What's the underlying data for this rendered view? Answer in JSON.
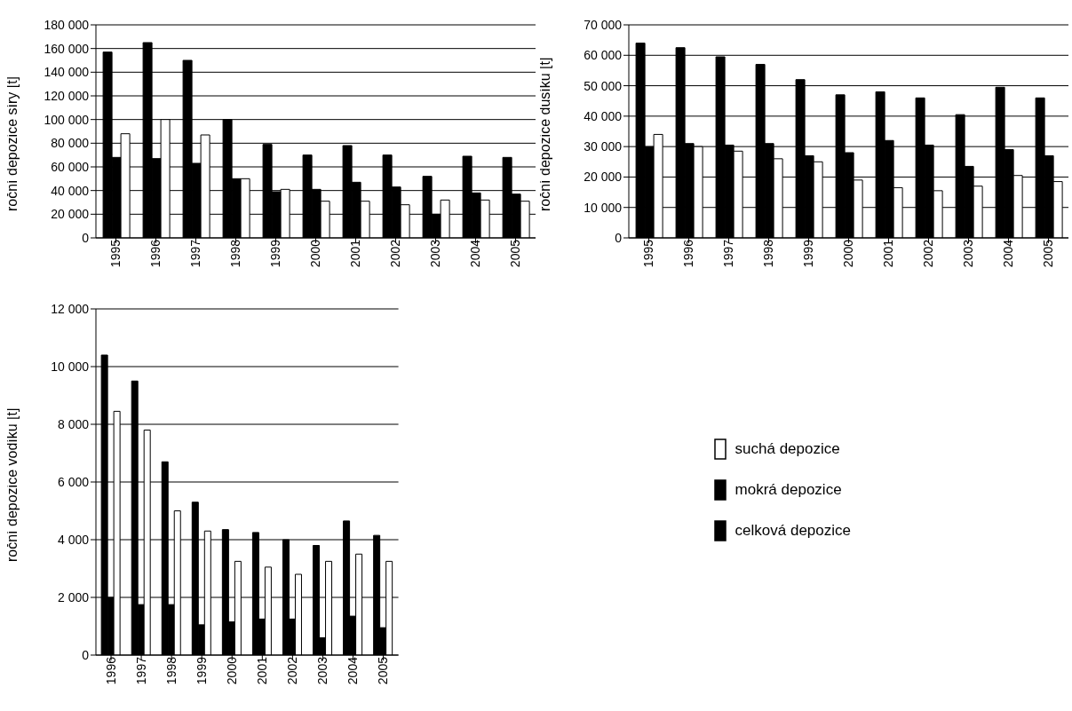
{
  "chart_data": [
    {
      "type": "bar",
      "ylabel": "roční depozice síry [t]",
      "categories": [
        "1995",
        "1996",
        "1997",
        "1998",
        "1999",
        "2000",
        "2001",
        "2002",
        "2003",
        "2004",
        "2005"
      ],
      "series": [
        {
          "color": "#000000",
          "values": [
            157000,
            165000,
            150000,
            100000,
            79000,
            70000,
            78000,
            70000,
            52000,
            69000,
            68000
          ]
        },
        {
          "color": "#000000",
          "values": [
            68000,
            67000,
            63000,
            50000,
            39000,
            41000,
            47000,
            43000,
            20000,
            38000,
            37000
          ]
        },
        {
          "color": "#ffffff",
          "values": [
            88000,
            100000,
            87000,
            50000,
            41000,
            31000,
            31000,
            28000,
            32000,
            32000,
            31000
          ]
        }
      ],
      "ylim": [
        0,
        180000
      ],
      "yticks": [
        {
          "value": 0,
          "label": "0"
        },
        {
          "value": 20000,
          "label": "20 000"
        },
        {
          "value": 40000,
          "label": "40 000"
        },
        {
          "value": 60000,
          "label": "60 000"
        },
        {
          "value": 80000,
          "label": "80 000"
        },
        {
          "value": 100000,
          "label": "100 000"
        },
        {
          "value": 120000,
          "label": "120 000"
        },
        {
          "value": 140000,
          "label": "140 000"
        },
        {
          "value": 160000,
          "label": "160 000"
        },
        {
          "value": 180000,
          "label": "180 000"
        }
      ],
      "grid": "y"
    },
    {
      "type": "bar",
      "ylabel": "roční depozice dusíku [t]",
      "categories": [
        "1995",
        "1996",
        "1997",
        "1998",
        "1999",
        "2000",
        "2001",
        "2002",
        "2003",
        "2004",
        "2005"
      ],
      "series": [
        {
          "color": "#000000",
          "values": [
            64000,
            62500,
            59500,
            57000,
            52000,
            47000,
            48000,
            46000,
            40500,
            49500,
            46000
          ]
        },
        {
          "color": "#000000",
          "values": [
            30000,
            31000,
            30500,
            31000,
            27000,
            28000,
            32000,
            30500,
            23500,
            29000,
            27000
          ]
        },
        {
          "color": "#ffffff",
          "values": [
            34000,
            30000,
            28500,
            26000,
            25000,
            19000,
            16500,
            15500,
            17000,
            20500,
            18500
          ]
        }
      ],
      "ylim": [
        0,
        70000
      ],
      "yticks": [
        {
          "value": 0,
          "label": "0"
        },
        {
          "value": 10000,
          "label": "10 000"
        },
        {
          "value": 20000,
          "label": "20 000"
        },
        {
          "value": 30000,
          "label": "30 000"
        },
        {
          "value": 40000,
          "label": "40 000"
        },
        {
          "value": 50000,
          "label": "50 000"
        },
        {
          "value": 60000,
          "label": "60 000"
        },
        {
          "value": 70000,
          "label": "70 000"
        }
      ],
      "grid": "y"
    },
    {
      "type": "bar",
      "ylabel": "roční depozice vodíku [t]",
      "categories": [
        "1996",
        "1997",
        "1998",
        "1999",
        "2000",
        "2001",
        "2002",
        "2003",
        "2004",
        "2005"
      ],
      "series": [
        {
          "name": "celková depozice",
          "color": "#000000",
          "values": [
            10400,
            9500,
            6700,
            5300,
            4350,
            4250,
            4000,
            3800,
            4650,
            4150
          ]
        },
        {
          "name": "mokrá depozice",
          "color": "#000000",
          "values": [
            2000,
            1750,
            1750,
            1050,
            1150,
            1250,
            1250,
            600,
            1350,
            950
          ]
        },
        {
          "name": "suchá depozice",
          "color": "#ffffff",
          "values": [
            8450,
            7800,
            5000,
            4300,
            3250,
            3050,
            2800,
            3250,
            3500,
            3250
          ]
        }
      ],
      "ylim": [
        0,
        12000
      ],
      "yticks": [
        {
          "value": 0,
          "label": "0"
        },
        {
          "value": 2000,
          "label": "2 000"
        },
        {
          "value": 4000,
          "label": "4 000"
        },
        {
          "value": 6000,
          "label": "6 000"
        },
        {
          "value": 8000,
          "label": "8 000"
        },
        {
          "value": 10000,
          "label": "10 000"
        },
        {
          "value": 12000,
          "label": "12 000"
        }
      ],
      "grid": "y",
      "legend": "right"
    }
  ]
}
